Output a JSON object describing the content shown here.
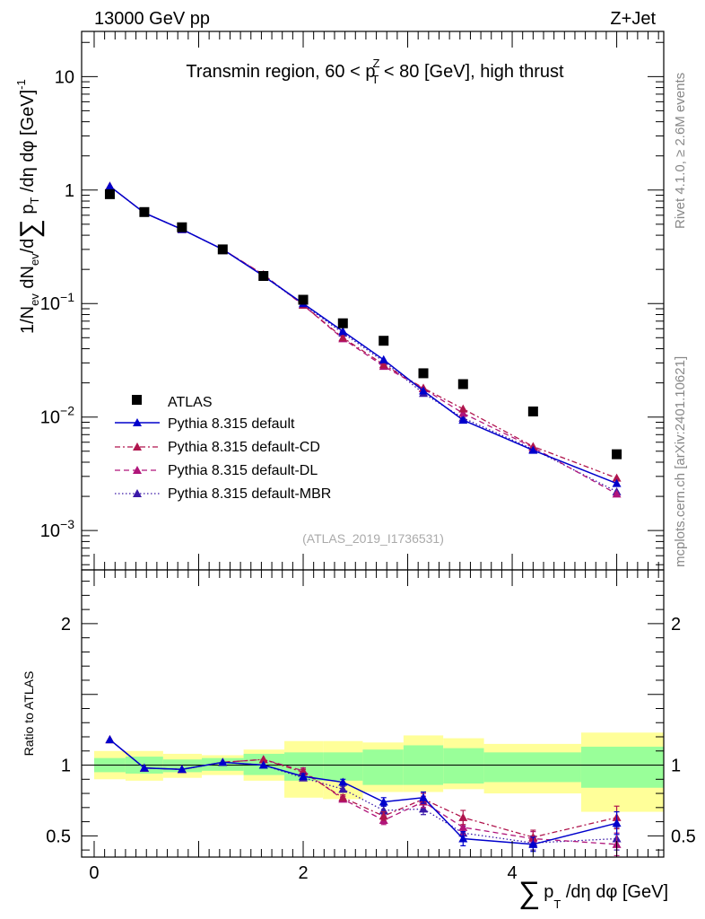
{
  "header": {
    "left": "13000 GeV pp",
    "right": "Z+Jet"
  },
  "side_labels": {
    "rivet": "Rivet 4.1.0, ≥ 2.6M events",
    "mcplots": "mcplots.cern.ch [arXiv:2401.10621]"
  },
  "watermark": "(ATLAS_2019_I1736531)",
  "chart_data": [
    {
      "type": "scatter",
      "panel": "main",
      "title": "Transmin region, 60 < p_T^Z < 80 [GeV], high thrust",
      "title_parts": {
        "pre": "Transmin region, 60 < p",
        "sup": "Z",
        "sub": "T",
        "post": " < 80 [GeV], high thrust"
      },
      "ylabel_parts": {
        "a": "1/N",
        "a_sub": "ev",
        "b": " dN",
        "b_sub": "ev",
        "c": "/d",
        "sum": "∑",
        "d": " p",
        "d_sub": "T",
        "e": " /dη dφ  [GeV]",
        "e_sup": "-1"
      },
      "yscale": "log",
      "ylim": [
        0.00045,
        25
      ],
      "xlim": [
        -0.12,
        5.45
      ],
      "y_tick_labels": [
        {
          "v": 10,
          "label": "10"
        },
        {
          "v": 1,
          "label": "1"
        },
        {
          "v": 0.1,
          "base": "10",
          "exp": "−1"
        },
        {
          "v": 0.01,
          "base": "10",
          "exp": "−2"
        },
        {
          "v": 0.001,
          "base": "10",
          "exp": "−3"
        }
      ],
      "x": [
        0.15,
        0.48,
        0.84,
        1.23,
        1.62,
        2.0,
        2.38,
        2.77,
        3.15,
        3.53,
        4.2,
        5.0
      ],
      "series": [
        {
          "name": "ATLAS",
          "values": [
            0.92,
            0.64,
            0.47,
            0.3,
            0.175,
            0.108,
            0.067,
            0.047,
            0.0243,
            0.0195,
            0.0112,
            0.0047
          ]
        },
        {
          "name": "Pythia 8.315 default",
          "values": [
            1.08,
            0.63,
            0.45,
            0.3,
            0.175,
            0.1,
            0.057,
            0.032,
            0.017,
            0.0094,
            0.0051,
            0.0026
          ]
        },
        {
          "name": "Pythia 8.315 default-CD",
          "values": [
            1.08,
            0.63,
            0.45,
            0.3,
            0.18,
            0.097,
            0.05,
            0.029,
            0.018,
            0.0118,
            0.0055,
            0.0029
          ]
        },
        {
          "name": "Pythia 8.315 default-DL",
          "values": [
            1.08,
            0.63,
            0.45,
            0.3,
            0.18,
            0.097,
            0.049,
            0.028,
            0.0178,
            0.0108,
            0.0054,
            0.0021
          ]
        },
        {
          "name": "Pythia 8.315 default-MBR",
          "values": [
            1.08,
            0.63,
            0.45,
            0.3,
            0.175,
            0.098,
            0.055,
            0.031,
            0.0162,
            0.0098,
            0.0052,
            0.0022
          ]
        }
      ]
    },
    {
      "type": "scatter",
      "panel": "ratio",
      "ylabel": "Ratio to ATLAS",
      "xlabel_parts": {
        "sum": "∑",
        "a": "p",
        "a_sub": "T",
        "b": " /dη dφ [GeV]"
      },
      "ylim": [
        0.35,
        2.38
      ],
      "xlim": [
        -0.12,
        5.45
      ],
      "y_tick_labels": [
        {
          "v": 0.5,
          "label": "0.5"
        },
        {
          "v": 1,
          "label": "1"
        },
        {
          "v": 2,
          "label": "2"
        }
      ],
      "x_tick_labels": [
        {
          "v": 0,
          "label": "0"
        },
        {
          "v": 2,
          "label": "2"
        },
        {
          "v": 4,
          "label": "4"
        }
      ],
      "bins": [
        0.0,
        0.3,
        0.66,
        1.03,
        1.43,
        1.82,
        2.19,
        2.57,
        2.96,
        3.34,
        3.73,
        4.66,
        5.45
      ],
      "band_inner": [
        [
          0.95,
          1.05
        ],
        [
          0.94,
          1.06
        ],
        [
          0.95,
          1.04
        ],
        [
          0.96,
          1.05
        ],
        [
          0.93,
          1.08
        ],
        [
          0.89,
          1.09
        ],
        [
          0.89,
          1.09
        ],
        [
          0.86,
          1.11
        ],
        [
          0.86,
          1.14
        ],
        [
          0.87,
          1.12
        ],
        [
          0.88,
          1.09
        ],
        [
          0.84,
          1.13
        ]
      ],
      "band_outer": [
        [
          0.9,
          1.1
        ],
        [
          0.89,
          1.1
        ],
        [
          0.91,
          1.08
        ],
        [
          0.93,
          1.07
        ],
        [
          0.89,
          1.11
        ],
        [
          0.77,
          1.17
        ],
        [
          0.76,
          1.17
        ],
        [
          0.81,
          1.16
        ],
        [
          0.81,
          1.21
        ],
        [
          0.83,
          1.19
        ],
        [
          0.8,
          1.15
        ],
        [
          0.67,
          1.23
        ]
      ],
      "series": [
        {
          "name": "Pythia 8.315 default",
          "values": [
            1.18,
            0.98,
            0.97,
            1.02,
            1.0,
            0.92,
            0.88,
            0.74,
            0.77,
            0.48,
            0.44,
            0.59
          ],
          "errors": [
            0.01,
            0.01,
            0.01,
            0.01,
            0.01,
            0.02,
            0.02,
            0.03,
            0.04,
            0.05,
            0.05,
            0.08
          ]
        },
        {
          "name": "Pythia 8.315 default-CD",
          "values": [
            1.18,
            0.98,
            0.97,
            1.02,
            1.04,
            0.95,
            0.77,
            0.64,
            0.76,
            0.63,
            0.49,
            0.63
          ],
          "errors": [
            0.01,
            0.01,
            0.01,
            0.01,
            0.01,
            0.02,
            0.02,
            0.03,
            0.04,
            0.05,
            0.05,
            0.08
          ]
        },
        {
          "name": "Pythia 8.315 default-DL",
          "values": [
            1.18,
            0.98,
            0.97,
            1.02,
            1.04,
            0.96,
            0.76,
            0.61,
            0.74,
            0.56,
            0.48,
            0.44
          ],
          "errors": [
            0.01,
            0.01,
            0.01,
            0.01,
            0.01,
            0.02,
            0.02,
            0.03,
            0.04,
            0.05,
            0.05,
            0.08
          ]
        },
        {
          "name": "Pythia 8.315 default-MBR",
          "values": [
            1.18,
            0.98,
            0.97,
            1.02,
            1.0,
            0.91,
            0.83,
            0.68,
            0.69,
            0.52,
            0.45,
            0.48
          ],
          "errors": [
            0.01,
            0.01,
            0.01,
            0.01,
            0.01,
            0.02,
            0.02,
            0.03,
            0.04,
            0.05,
            0.05,
            0.08
          ]
        }
      ]
    }
  ],
  "colors": {
    "atlas": "#000000",
    "default": "#0000cc",
    "cd": "#b0154d",
    "dl": "#b0157a",
    "mbr": "#3a18a8",
    "band_inner": "#99ff99",
    "band_outer": "#ffff99"
  }
}
